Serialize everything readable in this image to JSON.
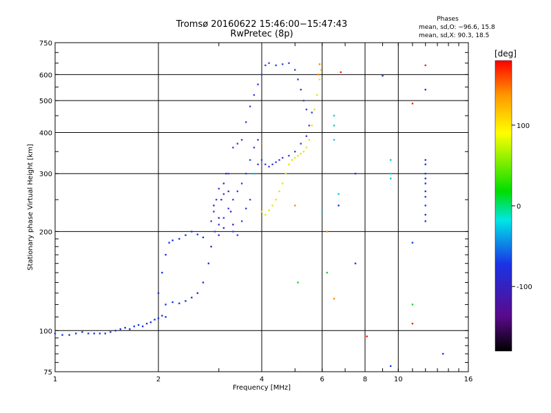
{
  "chart_data": {
    "type": "scatter",
    "title": "Tromsø 20160622 15:46:00−15:47:43",
    "subtitle": "RwPretec (8p)",
    "stats": {
      "heading": "Phases",
      "line_o": "mean, sd,O: −96.6, 15.8",
      "line_x": "mean, sd,X:  90.3, 18.5"
    },
    "xlabel": "Frequency [MHz]",
    "ylabel": "Stationary phase Virtual Height [km]",
    "x_scale": "log",
    "y_scale": "log",
    "xlim": [
      1,
      16
    ],
    "ylim": [
      75,
      750
    ],
    "grid": true,
    "x_ticks": [
      1,
      2,
      4,
      6,
      8,
      10,
      16
    ],
    "x_tick_labels": [
      "1",
      "2",
      "4",
      "6",
      "8",
      "10",
      "16"
    ],
    "y_ticks": [
      75,
      100,
      200,
      300,
      400,
      500,
      600,
      750
    ],
    "y_tick_labels": [
      "75",
      "100",
      "200",
      "300",
      "400",
      "500",
      "600",
      "750"
    ],
    "colorbar": {
      "label": "[deg]",
      "range": [
        -180,
        180
      ],
      "ticks": [
        100,
        0,
        -100
      ],
      "tick_labels": [
        "100",
        "0",
        "-100"
      ]
    },
    "series": [
      {
        "color": "#1a33e6",
        "phase": -100,
        "points": [
          [
            1.0,
            98
          ],
          [
            1.05,
            97
          ],
          [
            1.1,
            97
          ],
          [
            1.15,
            98
          ],
          [
            1.2,
            99
          ],
          [
            1.25,
            98
          ],
          [
            1.3,
            98
          ],
          [
            1.35,
            98
          ],
          [
            1.4,
            98
          ],
          [
            1.45,
            99
          ],
          [
            1.5,
            100
          ],
          [
            1.55,
            101
          ],
          [
            1.6,
            102
          ],
          [
            1.65,
            101
          ],
          [
            1.7,
            103
          ],
          [
            1.75,
            104
          ],
          [
            1.8,
            103
          ],
          [
            1.85,
            105
          ],
          [
            1.9,
            106
          ],
          [
            1.95,
            108
          ],
          [
            2.0,
            109
          ],
          [
            2.05,
            111
          ],
          [
            2.1,
            110
          ],
          [
            2.1,
            120
          ],
          [
            2.2,
            122
          ],
          [
            2.3,
            121
          ],
          [
            2.4,
            123
          ],
          [
            2.5,
            126
          ],
          [
            2.6,
            130
          ],
          [
            2.7,
            140
          ],
          [
            2.8,
            160
          ],
          [
            2.85,
            180
          ],
          [
            2.0,
            130
          ],
          [
            2.05,
            150
          ],
          [
            2.1,
            170
          ],
          [
            2.15,
            185
          ],
          [
            2.2,
            188
          ],
          [
            2.3,
            190
          ],
          [
            2.4,
            195
          ],
          [
            2.5,
            200
          ],
          [
            2.6,
            196
          ],
          [
            2.7,
            192
          ]
        ]
      },
      {
        "color": "#3344dd",
        "phase": -90,
        "points": [
          [
            2.85,
            215
          ],
          [
            2.9,
            230
          ],
          [
            2.95,
            250
          ],
          [
            3.0,
            270
          ],
          [
            2.92,
            200
          ],
          [
            3.0,
            210
          ],
          [
            3.1,
            220
          ],
          [
            3.2,
            235
          ],
          [
            3.3,
            250
          ],
          [
            3.4,
            265
          ],
          [
            3.5,
            280
          ],
          [
            3.6,
            300
          ],
          [
            3.7,
            330
          ],
          [
            3.8,
            360
          ],
          [
            3.9,
            380
          ],
          [
            3.1,
            260
          ],
          [
            3.2,
            300
          ],
          [
            3.3,
            200
          ],
          [
            3.4,
            195
          ],
          [
            3.5,
            215
          ],
          [
            3.6,
            235
          ],
          [
            3.7,
            250
          ],
          [
            3.8,
            300
          ],
          [
            3.9,
            320
          ],
          [
            4.0,
            330
          ],
          [
            4.1,
            320
          ],
          [
            4.2,
            315
          ],
          [
            4.3,
            320
          ],
          [
            4.4,
            325
          ],
          [
            4.5,
            330
          ],
          [
            4.6,
            335
          ],
          [
            4.8,
            340
          ],
          [
            5.0,
            350
          ],
          [
            5.2,
            370
          ],
          [
            5.4,
            390
          ],
          [
            5.5,
            420
          ],
          [
            5.6,
            460
          ],
          [
            3.3,
            360
          ],
          [
            3.4,
            370
          ],
          [
            3.5,
            380
          ],
          [
            3.6,
            430
          ],
          [
            3.7,
            480
          ],
          [
            3.8,
            520
          ],
          [
            3.9,
            560
          ],
          [
            4.0,
            600
          ],
          [
            4.1,
            640
          ],
          [
            4.2,
            650
          ],
          [
            4.4,
            640
          ],
          [
            4.6,
            645
          ],
          [
            4.8,
            650
          ],
          [
            5.0,
            620
          ],
          [
            5.1,
            580
          ],
          [
            5.2,
            540
          ],
          [
            5.3,
            500
          ],
          [
            5.4,
            470
          ]
        ]
      },
      {
        "color": "#5522bb",
        "phase": -115,
        "points": [
          [
            2.9,
            240
          ],
          [
            3.0,
            220
          ],
          [
            3.05,
            250
          ],
          [
            3.1,
            280
          ],
          [
            3.15,
            300
          ],
          [
            3.2,
            265
          ],
          [
            3.25,
            230
          ],
          [
            3.3,
            210
          ],
          [
            3.0,
            195
          ],
          [
            3.1,
            205
          ]
        ]
      },
      {
        "color": "#e6e600",
        "phase": 100,
        "points": [
          [
            4.0,
            230
          ],
          [
            4.1,
            225
          ],
          [
            4.2,
            232
          ],
          [
            4.3,
            240
          ],
          [
            4.4,
            250
          ],
          [
            4.5,
            265
          ],
          [
            4.6,
            280
          ],
          [
            4.7,
            300
          ],
          [
            4.8,
            320
          ],
          [
            4.9,
            330
          ],
          [
            5.0,
            335
          ],
          [
            5.1,
            340
          ],
          [
            5.2,
            345
          ],
          [
            5.3,
            350
          ],
          [
            5.4,
            360
          ],
          [
            5.5,
            380
          ],
          [
            5.6,
            420
          ],
          [
            5.7,
            470
          ],
          [
            5.8,
            520
          ],
          [
            5.9,
            580
          ],
          [
            5.95,
            620
          ]
        ]
      },
      {
        "color": "#ff8800",
        "phase": 140,
        "points": [
          [
            5.9,
            645
          ],
          [
            5.85,
            600
          ],
          [
            6.5,
            125
          ],
          [
            4.0,
            370
          ],
          [
            5.0,
            240
          ],
          [
            6.2,
            200
          ]
        ]
      },
      {
        "color": "#00ccdd",
        "phase": -20,
        "points": [
          [
            6.5,
            450
          ],
          [
            6.5,
            420
          ],
          [
            6.5,
            380
          ],
          [
            9.5,
            330
          ],
          [
            9.5,
            300
          ],
          [
            9.5,
            290
          ],
          [
            6.0,
            230
          ],
          [
            6.7,
            260
          ],
          [
            3.8,
            300
          ]
        ]
      },
      {
        "color": "#22cc22",
        "phase": 0,
        "points": [
          [
            5.1,
            140
          ],
          [
            6.2,
            150
          ],
          [
            11.0,
            120
          ]
        ]
      },
      {
        "color": "#1a33e6",
        "phase": -100,
        "points": [
          [
            12.0,
            330
          ],
          [
            12.0,
            320
          ],
          [
            12.0,
            300
          ],
          [
            12.0,
            290
          ],
          [
            12.0,
            280
          ],
          [
            12.0,
            265
          ],
          [
            12.0,
            255
          ],
          [
            12.0,
            240
          ],
          [
            12.0,
            225
          ],
          [
            12.0,
            215
          ],
          [
            12.0,
            540
          ],
          [
            9.0,
            595
          ],
          [
            6.7,
            240
          ],
          [
            7.5,
            300
          ],
          [
            7.5,
            160
          ],
          [
            11.0,
            185
          ],
          [
            13.5,
            85
          ],
          [
            9.5,
            78
          ]
        ]
      },
      {
        "color": "#ee2200",
        "phase": 170,
        "points": [
          [
            6.8,
            610
          ],
          [
            8.1,
            96
          ],
          [
            11.0,
            105
          ],
          [
            12.0,
            640
          ],
          [
            11.0,
            490
          ]
        ]
      }
    ]
  }
}
